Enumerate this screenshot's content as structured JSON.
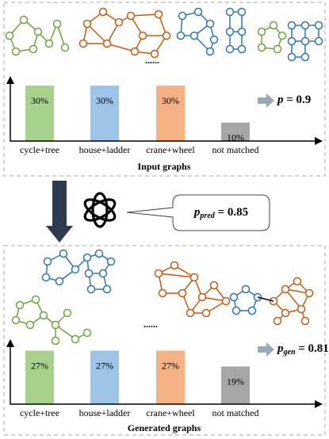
{
  "chart_data": [
    {
      "type": "bar",
      "title": "Input graphs",
      "categories": [
        "cycle+tree",
        "house+ladder",
        "crane+wheel",
        "not matched"
      ],
      "values": [
        30,
        30,
        30,
        10
      ],
      "value_labels": [
        "30%",
        "30%",
        "30%",
        "10%"
      ],
      "colors": [
        "#a9d18e",
        "#9dc3e6",
        "#f4b183",
        "#a6a6a6"
      ],
      "annotation": {
        "symbol": "p",
        "text": " = 0.9"
      }
    },
    {
      "type": "bar",
      "title": "Generated graphs",
      "categories": [
        "cycle+tree",
        "house+ladder",
        "crane+wheel",
        "not matched"
      ],
      "values": [
        27,
        27,
        27,
        19
      ],
      "value_labels": [
        "27%",
        "27%",
        "27%",
        "19%"
      ],
      "colors": [
        "#a9d18e",
        "#9dc3e6",
        "#f4b183",
        "#a6a6a6"
      ],
      "annotation": {
        "symbol": "p",
        "subscript": "gen",
        "text": " = 0.81"
      }
    }
  ],
  "callout": {
    "symbol": "p",
    "subscript": "pred",
    "text": " = 0.85"
  },
  "ellipsis": [
    "......",
    "......"
  ]
}
